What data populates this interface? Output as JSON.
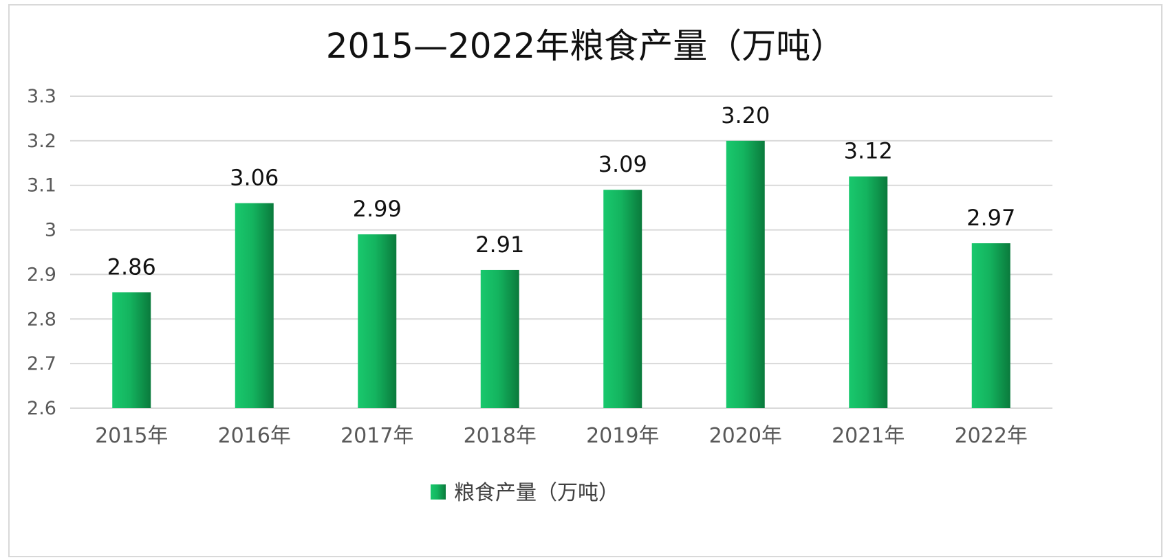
{
  "chart_data": {
    "type": "bar",
    "title": "2015—2022年粮食产量（万吨）",
    "categories": [
      "2015年",
      "2016年",
      "2017年",
      "2018年",
      "2019年",
      "2020年",
      "2021年",
      "2022年"
    ],
    "series": [
      {
        "name": "粮食产量（万吨）",
        "values": [
          2.86,
          3.06,
          2.99,
          2.91,
          3.09,
          3.2,
          3.12,
          2.97
        ],
        "data_labels": [
          "2.86",
          "3.06",
          "2.99",
          "2.91",
          "3.09",
          "3.20",
          "3.12",
          "2.97"
        ]
      }
    ],
    "ylim": [
      2.6,
      3.3
    ],
    "y_ticks": [
      2.6,
      2.7,
      2.8,
      2.9,
      3.0,
      3.1,
      3.2,
      3.3
    ],
    "y_tick_labels": [
      "2.6",
      "2.7",
      "2.8",
      "2.9",
      "3",
      "3.1",
      "3.2",
      "3.3"
    ],
    "xlabel": "",
    "ylabel": "",
    "grid": true,
    "legend_position": "bottom",
    "colors": {
      "bar_light": "#19c86d",
      "bar_dark": "#0a7a3c",
      "grid": "#d9d9d9"
    }
  }
}
